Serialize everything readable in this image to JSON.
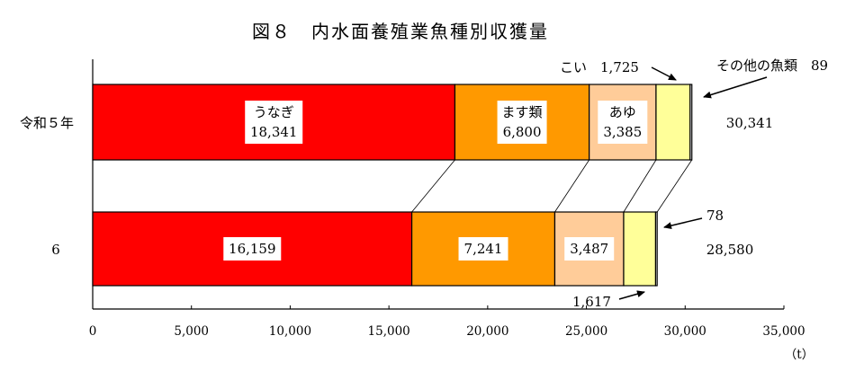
{
  "chart_data": {
    "type": "stacked-horizontal-bar",
    "title": "図８　内水面養殖業魚種別収獲量",
    "unit_label": "（t）",
    "categories": [
      "令和５年",
      "6"
    ],
    "series": [
      {
        "name": "うなぎ",
        "values": [
          18341,
          16159
        ],
        "labels": [
          "18,341",
          "16,159"
        ],
        "color": "#ff0000"
      },
      {
        "name": "ます類",
        "values": [
          6800,
          7241
        ],
        "labels": [
          "6,800",
          "7,241"
        ],
        "color": "#ff9900"
      },
      {
        "name": "あゆ",
        "values": [
          3385,
          3487
        ],
        "labels": [
          "3,385",
          "3,487"
        ],
        "color": "#ffcc99"
      },
      {
        "name": "こい",
        "values": [
          1725,
          1617
        ],
        "labels": [
          "1,725",
          "1,617"
        ],
        "color": "#ffff99"
      },
      {
        "name": "その他の魚類",
        "values": [
          89,
          78
        ],
        "labels": [
          "89",
          "78"
        ],
        "color": "#ffffff"
      }
    ],
    "totals": [
      30341,
      28580
    ],
    "total_labels": [
      "30,341",
      "28,580"
    ],
    "callouts": {
      "koi_r5": "こい　1,725",
      "other_r5": "その他の魚類　89",
      "other_r6": "78",
      "koi_r6": "1,617"
    },
    "xlim": [
      0,
      35000
    ],
    "xticks": [
      0,
      5000,
      10000,
      15000,
      20000,
      25000,
      30000,
      35000
    ],
    "xtick_labels": [
      "0",
      "5,000",
      "10,000",
      "15,000",
      "20,000",
      "25,000",
      "30,000",
      "35,000"
    ],
    "series_name_labels": [
      "うなぎ",
      "ます類",
      "あゆ"
    ],
    "grid": false
  }
}
